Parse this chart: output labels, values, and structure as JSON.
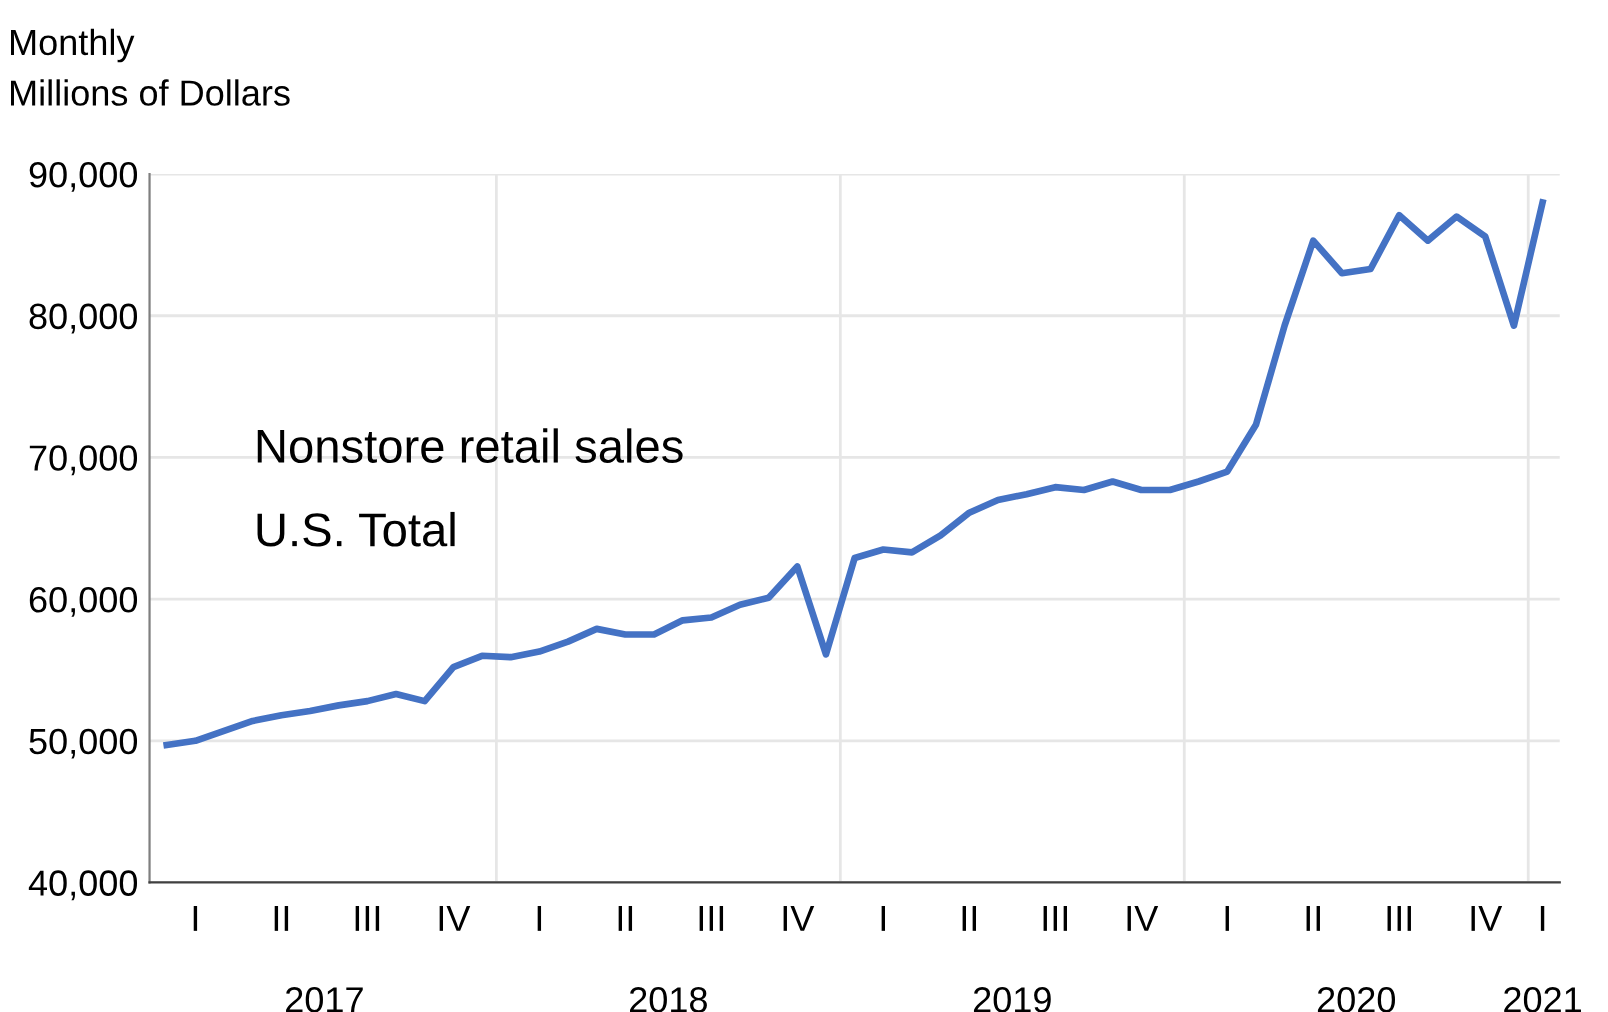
{
  "chart_data": {
    "type": "line",
    "title": "Monthly",
    "ylabel": "Millions of Dollars",
    "annotations": [
      "Nonstore retail sales",
      "U.S. Total",
      "2017",
      "2018",
      "2019",
      "2020",
      "2021"
    ],
    "categories": [
      null,
      "I",
      null,
      null,
      "II",
      null,
      null,
      "III",
      null,
      null,
      "IV",
      null,
      null,
      "I",
      null,
      null,
      "II",
      null,
      null,
      "III",
      null,
      null,
      "IV",
      null,
      null,
      "I",
      null,
      null,
      "II",
      null,
      null,
      "III",
      null,
      null,
      "IV",
      null,
      null,
      "I",
      null,
      null,
      "II",
      null,
      null,
      "III",
      null,
      null,
      "IV",
      null,
      "I"
    ],
    "series": [
      {
        "color": "#4472c4",
        "values": [
          49700,
          50000,
          50700,
          51400,
          51800,
          52100,
          52500,
          52800,
          53300,
          52800,
          55200,
          56000,
          55900,
          56300,
          57000,
          57900,
          57500,
          57500,
          58500,
          58700,
          59600,
          60100,
          62300,
          56100,
          62900,
          63500,
          63300,
          64500,
          66100,
          67000,
          67400,
          67900,
          67700,
          68300,
          67700,
          67700,
          68300,
          69000,
          72300,
          79300,
          85300,
          83000,
          83300,
          87100,
          85300,
          87000,
          85600,
          79300,
          88000
        ]
      }
    ],
    "ylim": [
      40000,
      90000
    ],
    "yticks": [
      {
        "value": 40000,
        "label": "40,000"
      },
      {
        "value": 50000,
        "label": "50,000"
      },
      {
        "value": 60000,
        "label": "60,000"
      },
      {
        "value": 70000,
        "label": "70,000"
      },
      {
        "value": 80000,
        "label": "80,000"
      },
      {
        "value": 90000,
        "label": "90,000"
      }
    ],
    "grid": "y",
    "legend": false,
    "marker": "none",
    "line_style": "solid"
  }
}
